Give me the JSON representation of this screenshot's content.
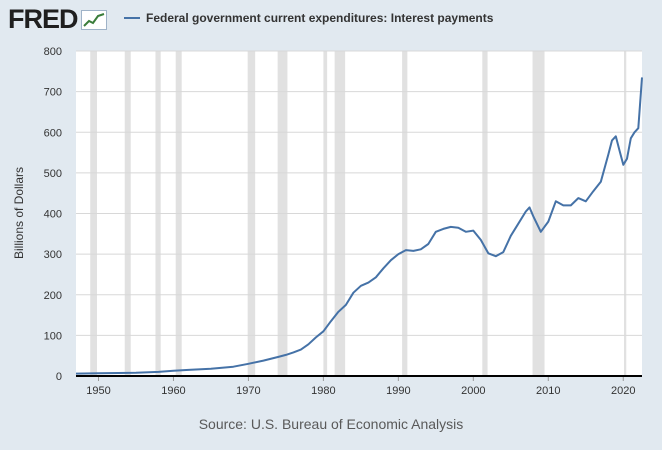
{
  "logo": {
    "text": "FRED"
  },
  "colors": {
    "background": "#e1e9f0",
    "plot_area": "#ffffff",
    "series": "#4572a7",
    "recession": "#e1e1e1",
    "grid": "#d8d8d8",
    "axis_text": "#333333"
  },
  "source": "Source: U.S. Bureau of Economic Analysis",
  "chart_data": {
    "type": "line",
    "title": "",
    "xlabel": "",
    "ylabel": "Billions of Dollars",
    "xlim": [
      1947,
      2022.5
    ],
    "ylim": [
      0,
      800
    ],
    "yticks": [
      0,
      100,
      200,
      300,
      400,
      500,
      600,
      700,
      800
    ],
    "xticks": [
      1950,
      1960,
      1970,
      1980,
      1990,
      2000,
      2010,
      2020
    ],
    "grid": true,
    "legend_position": "top",
    "recessions": [
      [
        1948.9,
        1949.8
      ],
      [
        1953.5,
        1954.3
      ],
      [
        1957.6,
        1958.3
      ],
      [
        1960.3,
        1961.1
      ],
      [
        1969.9,
        1970.9
      ],
      [
        1973.9,
        1975.2
      ],
      [
        1980.0,
        1980.5
      ],
      [
        1981.5,
        1982.9
      ],
      [
        1990.5,
        1991.2
      ],
      [
        2001.2,
        2001.9
      ],
      [
        2007.9,
        2009.5
      ],
      [
        2020.1,
        2020.4
      ]
    ],
    "series": [
      {
        "name": "Federal government current expenditures: Interest payments",
        "x": [
          1947,
          1950,
          1955,
          1958,
          1960,
          1962,
          1965,
          1968,
          1970,
          1972,
          1974,
          1975,
          1976,
          1977,
          1978,
          1979,
          1980,
          1981,
          1982,
          1983,
          1984,
          1985,
          1986,
          1987,
          1988,
          1989,
          1990,
          1991,
          1992,
          1993,
          1994,
          1995,
          1996,
          1997,
          1998,
          1999,
          2000,
          2001,
          2002,
          2003,
          2004,
          2005,
          2006,
          2007,
          2007.5,
          2008,
          2009,
          2010,
          2011,
          2012,
          2013,
          2014,
          2015,
          2016,
          2017,
          2018,
          2018.5,
          2019,
          2019.5,
          2020,
          2020.5,
          2021,
          2021.5,
          2022,
          2022.5
        ],
        "values": [
          6,
          7,
          8,
          10,
          13,
          15,
          18,
          23,
          30,
          38,
          47,
          52,
          58,
          65,
          78,
          95,
          110,
          135,
          158,
          175,
          205,
          222,
          230,
          243,
          265,
          285,
          300,
          310,
          308,
          312,
          325,
          355,
          362,
          367,
          365,
          355,
          358,
          335,
          302,
          295,
          305,
          345,
          375,
          405,
          415,
          393,
          355,
          380,
          430,
          420,
          420,
          438,
          430,
          455,
          478,
          545,
          580,
          590,
          555,
          520,
          535,
          585,
          600,
          610,
          735
        ]
      }
    ]
  }
}
